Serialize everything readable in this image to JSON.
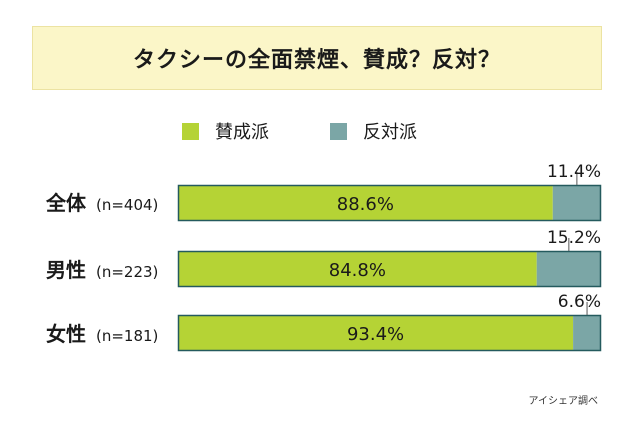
{
  "title": "タクシーの全面禁煙、賛成？反対？",
  "source": "アイシェア調べ",
  "colors": {
    "favor": "#b5d335",
    "oppose": "#7ba6a6",
    "oppose_edge": "#245a5e",
    "banner": "#fbf6c8"
  },
  "chart_data": {
    "type": "bar",
    "orientation": "horizontal",
    "stacked": true,
    "percent_stacked": true,
    "categories": [
      "全体",
      "男性",
      "女性"
    ],
    "sample_sizes": [
      "(n=404)",
      "(n=223)",
      "(n=181)"
    ],
    "series": [
      {
        "name": "賛成派",
        "values": [
          88.6,
          84.8,
          93.4
        ],
        "labels": [
          "88.6%",
          "84.8%",
          "93.4%"
        ]
      },
      {
        "name": "反対派",
        "values": [
          11.4,
          15.2,
          6.6
        ],
        "labels": [
          "11.4%",
          "15.2%",
          "6.6%"
        ]
      }
    ],
    "xlim": [
      0,
      100
    ],
    "legend": "top",
    "grid": false
  }
}
